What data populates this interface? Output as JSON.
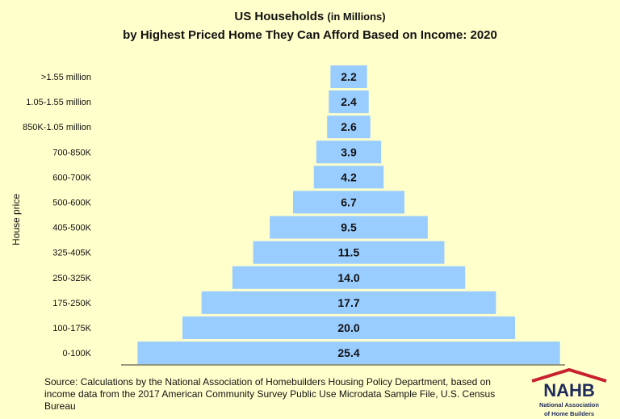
{
  "chart_data": {
    "type": "bar",
    "orientation": "horizontal-centered",
    "title": "US Households",
    "title_suffix": "(in Millions)",
    "subtitle": "by Highest Priced Home They Can Afford Based on Income: 2020",
    "ylabel": "House price",
    "categories": [
      ">1.55 million",
      "1.05-1.55 million",
      "850K-1.05 million",
      "700-850K",
      "600-700K",
      "500-600K",
      "405-500K",
      "325-405K",
      "250-325K",
      "175-250K",
      "100-175K",
      "0-100K"
    ],
    "values": [
      2.2,
      2.4,
      2.6,
      3.9,
      4.2,
      6.7,
      9.5,
      11.5,
      14.0,
      17.7,
      20.0,
      25.4
    ],
    "labels": [
      "2.2",
      "2.4",
      "2.6",
      "3.9",
      "4.2",
      "6.7",
      "9.5",
      "11.5",
      "14.0",
      "17.7",
      "20.0",
      "25.4"
    ],
    "bar_color": "#99CCFF",
    "background_color": "#FFFFCC",
    "grid": false
  },
  "source": "Source: Calculations by the National Association of Homebuilders Housing Policy Department, based on income data from the 2017 American Community Survey Public Use Microdata Sample File, U.S. Census Bureau",
  "logo": {
    "text": "NAHB",
    "subtitle": "National Association of Home Builders",
    "colors": {
      "navy": "#1F2A5C",
      "red": "#C8202F"
    }
  }
}
